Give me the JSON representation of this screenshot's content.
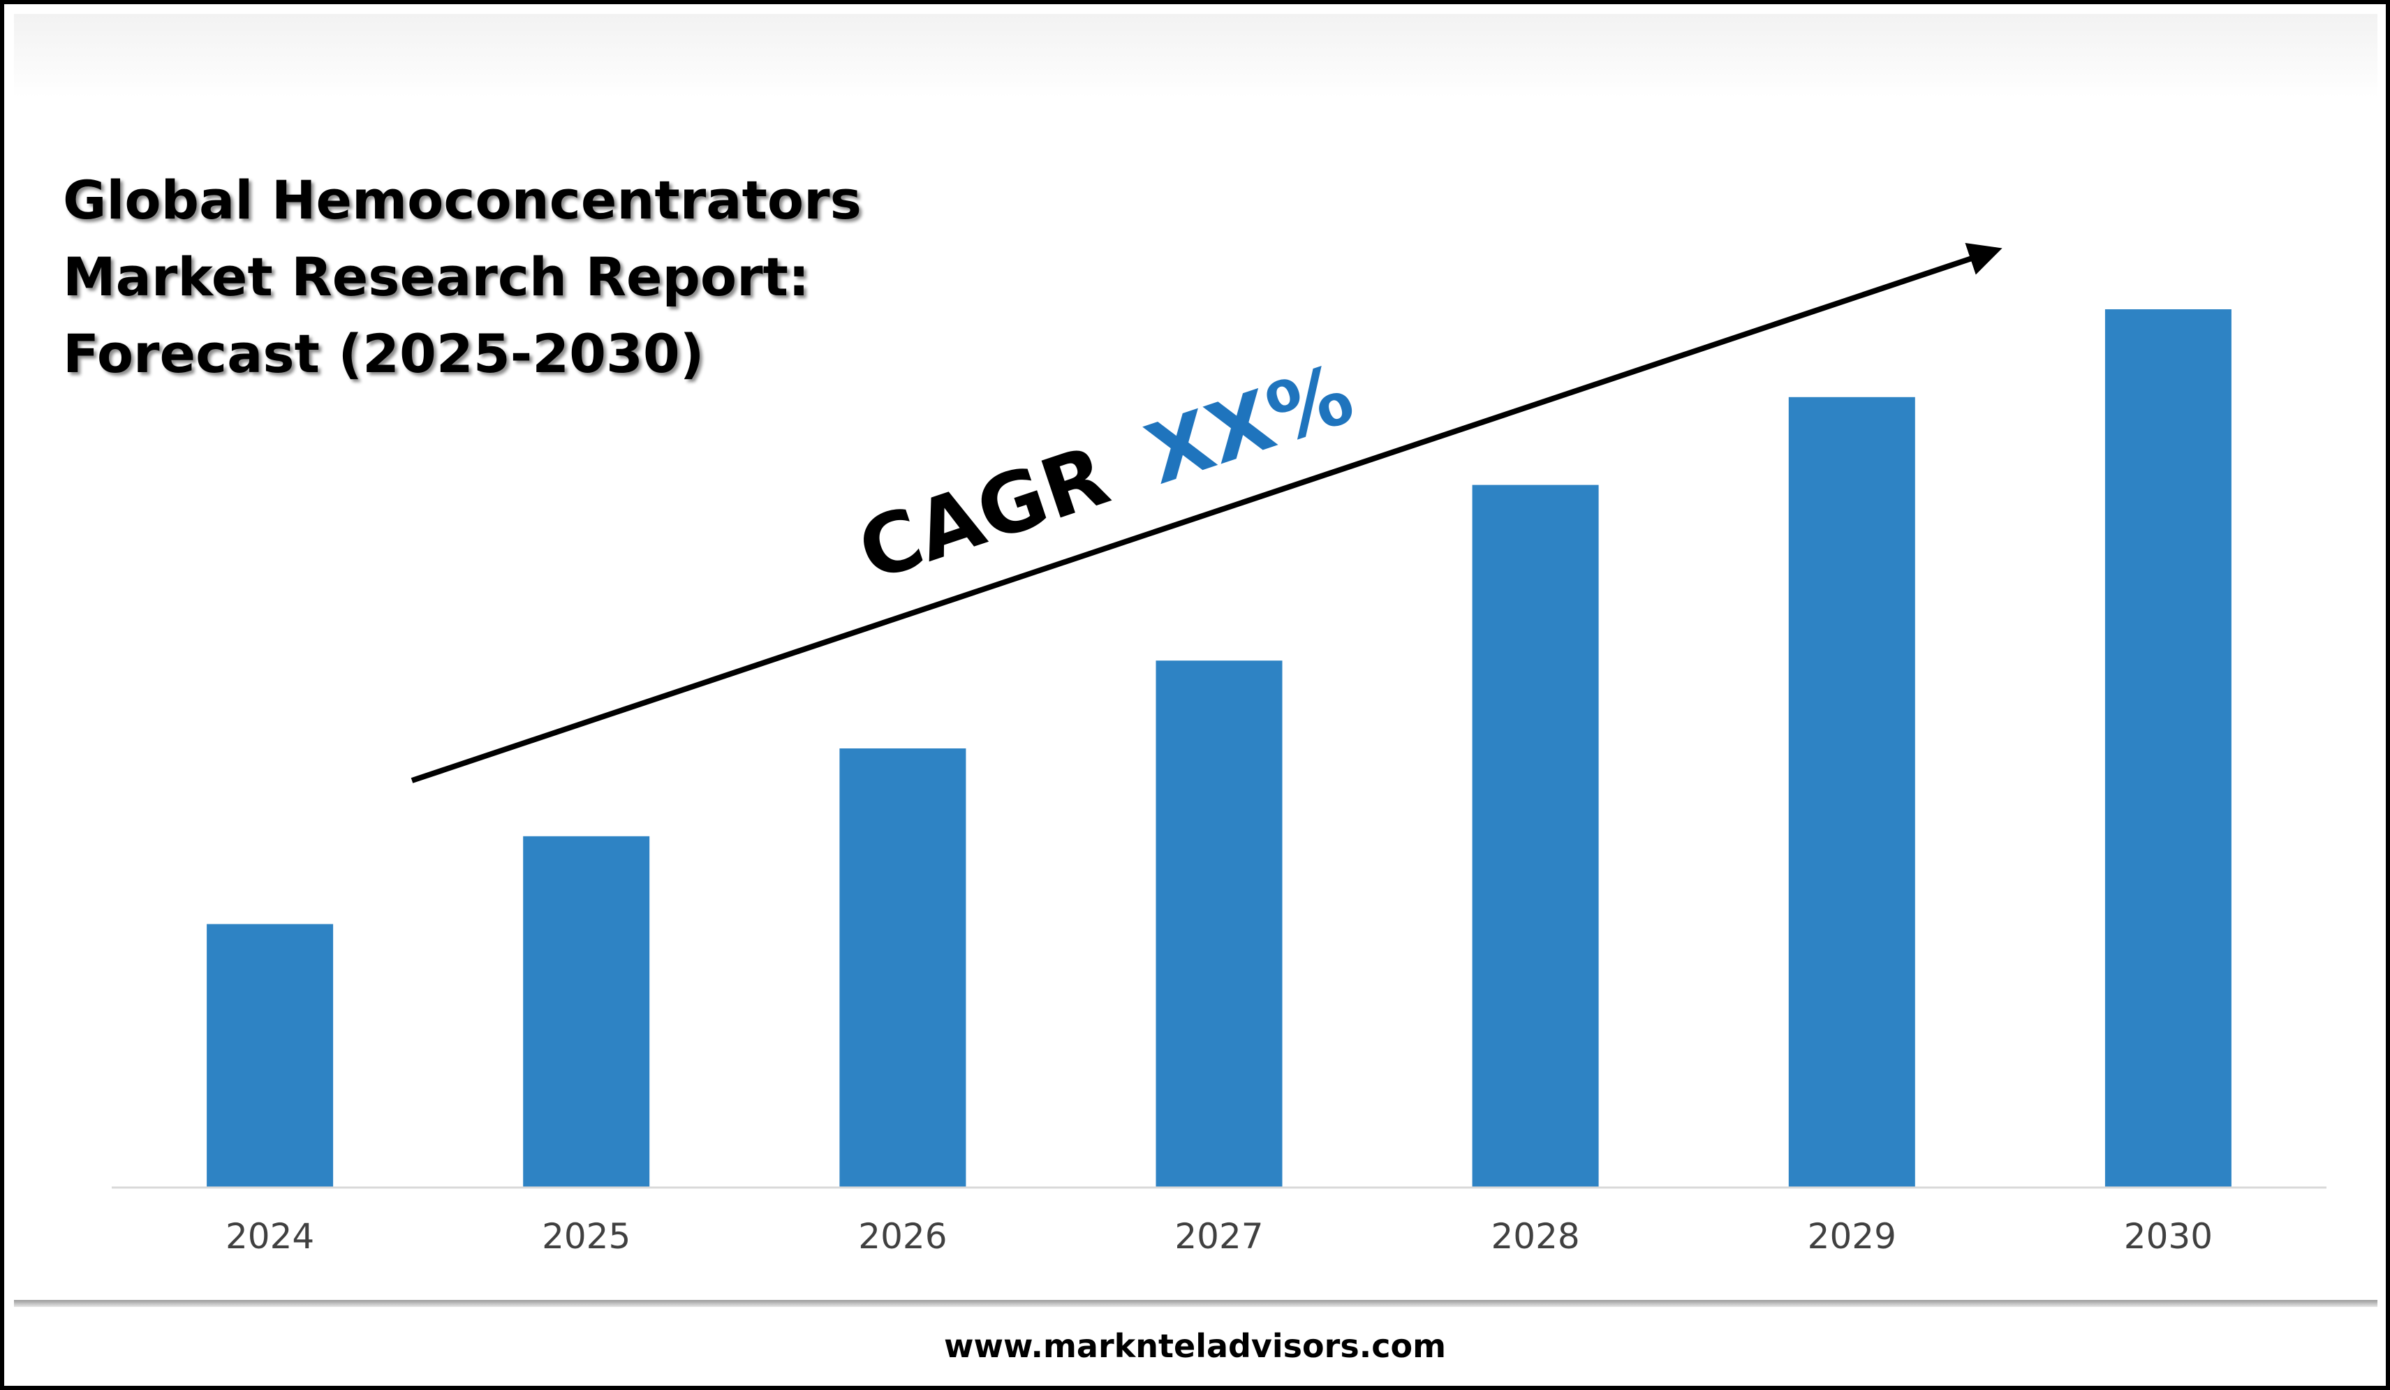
{
  "chart_data": {
    "type": "bar",
    "title": "Global Hemoconcentrators Market Research Report: Forecast (2025-2030)",
    "title_lines": [
      "Global Hemoconcentrators",
      "Market Research Report:",
      "Forecast (2025-2030)"
    ],
    "categories": [
      "2024",
      "2025",
      "2026",
      "2027",
      "2028",
      "2029",
      "2030"
    ],
    "values": [
      3,
      4,
      5,
      6,
      8,
      9,
      10
    ],
    "ylim": [
      0,
      10
    ],
    "xlabel": "",
    "ylabel": "",
    "grid": false,
    "legend": "none",
    "bar_color": "#2e83c4",
    "annotation": {
      "prefix": "CAGR",
      "value": "XX%",
      "prefix_color": "#000000",
      "value_color": "#1f74bd"
    }
  },
  "footer": {
    "url": "www.marknteladvisors.com"
  }
}
